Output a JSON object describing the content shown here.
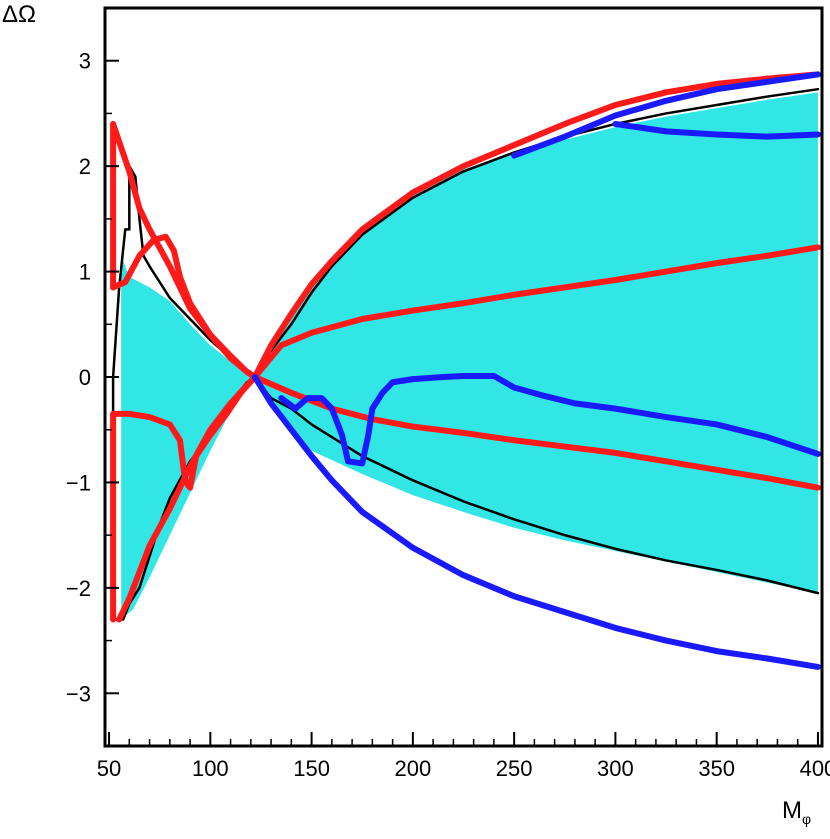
{
  "chart_data": {
    "type": "line",
    "title": "",
    "xlabel": "M",
    "xlabel_sub": "φ",
    "ylabel": "ΔΩ",
    "xlim": [
      48,
      402
    ],
    "ylim": [
      -3.5,
      3.5
    ],
    "x_ticks": [
      50,
      100,
      150,
      200,
      250,
      300,
      350,
      400
    ],
    "y_ticks": [
      -3,
      -2,
      -1,
      0,
      1,
      2,
      3
    ],
    "x_tick_labels": [
      "50",
      "100",
      "150",
      "200",
      "250",
      "300",
      "350",
      "400"
    ],
    "y_tick_labels": [
      "−3",
      "−2",
      "−1",
      "0",
      "1",
      "2",
      "3"
    ],
    "grid": false,
    "legend": "none",
    "band": {
      "color": "#33e6e6",
      "upper": [
        [
          56,
          1.15
        ],
        [
          60,
          0.95
        ],
        [
          70,
          0.85
        ],
        [
          80,
          0.72
        ],
        [
          90,
          0.5
        ],
        [
          100,
          0.3
        ],
        [
          110,
          0.15
        ],
        [
          118,
          0.07
        ],
        [
          122,
          0
        ],
        [
          130,
          0.25
        ],
        [
          140,
          0.55
        ],
        [
          150,
          0.85
        ],
        [
          160,
          1.1
        ],
        [
          175,
          1.38
        ],
        [
          200,
          1.72
        ],
        [
          225,
          1.97
        ],
        [
          250,
          2.12
        ],
        [
          275,
          2.25
        ],
        [
          300,
          2.37
        ],
        [
          325,
          2.47
        ],
        [
          350,
          2.55
        ],
        [
          375,
          2.63
        ],
        [
          400,
          2.7
        ]
      ],
      "lower": [
        [
          400,
          -2.05
        ],
        [
          375,
          -1.95
        ],
        [
          350,
          -1.85
        ],
        [
          325,
          -1.75
        ],
        [
          300,
          -1.65
        ],
        [
          275,
          -1.55
        ],
        [
          250,
          -1.43
        ],
        [
          225,
          -1.28
        ],
        [
          200,
          -1.12
        ],
        [
          175,
          -0.92
        ],
        [
          150,
          -0.7
        ],
        [
          140,
          -0.5
        ],
        [
          130,
          -0.25
        ],
        [
          122,
          0
        ],
        [
          115,
          -0.15
        ],
        [
          108,
          -0.4
        ],
        [
          100,
          -0.7
        ],
        [
          90,
          -1.1
        ],
        [
          80,
          -1.5
        ],
        [
          70,
          -1.9
        ],
        [
          62,
          -2.2
        ],
        [
          56,
          -2.3
        ]
      ]
    },
    "series": [
      {
        "color": "#000000",
        "width": 2.5,
        "points": [
          [
            52,
            -2.3
          ],
          [
            57,
            -2.3
          ],
          [
            60,
            -2.15
          ],
          [
            65,
            -2.0
          ],
          [
            70,
            -1.7
          ],
          [
            75,
            -1.4
          ],
          [
            80,
            -1.15
          ],
          [
            90,
            -0.8
          ],
          [
            100,
            -0.55
          ],
          [
            110,
            -0.25
          ],
          [
            118,
            -0.05
          ],
          [
            122,
            0
          ],
          [
            130,
            -0.2
          ],
          [
            140,
            -0.3
          ],
          [
            150,
            -0.45
          ],
          [
            175,
            -0.75
          ],
          [
            200,
            -0.98
          ],
          [
            225,
            -1.18
          ],
          [
            250,
            -1.35
          ],
          [
            275,
            -1.5
          ],
          [
            300,
            -1.63
          ],
          [
            325,
            -1.74
          ],
          [
            350,
            -1.83
          ],
          [
            375,
            -1.93
          ],
          [
            400,
            -2.05
          ]
        ]
      },
      {
        "color": "#000000",
        "width": 2.5,
        "points": [
          [
            52,
            -2.3
          ],
          [
            52,
            0
          ],
          [
            55,
            0.85
          ],
          [
            58,
            1.4
          ],
          [
            60,
            1.4
          ],
          [
            60,
            2.0
          ],
          [
            63,
            1.9
          ],
          [
            65,
            1.5
          ],
          [
            67,
            1.15
          ],
          [
            70,
            1.05
          ],
          [
            75,
            0.9
          ],
          [
            80,
            0.75
          ],
          [
            90,
            0.55
          ],
          [
            100,
            0.35
          ],
          [
            110,
            0.18
          ],
          [
            118,
            0.06
          ],
          [
            122,
            0
          ],
          [
            125,
            0.15
          ],
          [
            130,
            0.25
          ],
          [
            140,
            0.5
          ],
          [
            150,
            0.8
          ],
          [
            160,
            1.05
          ],
          [
            175,
            1.35
          ],
          [
            200,
            1.7
          ],
          [
            225,
            1.95
          ],
          [
            250,
            2.13
          ],
          [
            275,
            2.28
          ],
          [
            300,
            2.4
          ],
          [
            325,
            2.5
          ],
          [
            350,
            2.58
          ],
          [
            375,
            2.66
          ],
          [
            400,
            2.73
          ]
        ]
      },
      {
        "color": "#ff1a1a",
        "width": 6,
        "points": [
          [
            52,
            2.4
          ],
          [
            60,
            1.95
          ],
          [
            65,
            1.6
          ],
          [
            70,
            1.4
          ],
          [
            80,
            1.05
          ],
          [
            90,
            0.65
          ],
          [
            100,
            0.4
          ],
          [
            110,
            0.18
          ],
          [
            118,
            0.05
          ],
          [
            122,
            0
          ]
        ]
      },
      {
        "color": "#ff1a1a",
        "width": 6,
        "points": [
          [
            52,
            0.85
          ],
          [
            58,
            0.9
          ],
          [
            65,
            1.15
          ],
          [
            72,
            1.3
          ],
          [
            78,
            1.33
          ],
          [
            82,
            1.2
          ],
          [
            85,
            0.95
          ],
          [
            90,
            0.7
          ],
          [
            100,
            0.4
          ],
          [
            110,
            0.2
          ],
          [
            118,
            0.05
          ],
          [
            122,
            0
          ]
        ]
      },
      {
        "color": "#ff1a1a",
        "width": 6,
        "points": [
          [
            52,
            2.4
          ],
          [
            52,
            0.85
          ]
        ]
      },
      {
        "color": "#ff1a1a",
        "width": 6,
        "points": [
          [
            52,
            -2.3
          ],
          [
            52,
            -0.35
          ],
          [
            60,
            -0.35
          ],
          [
            70,
            -0.38
          ],
          [
            80,
            -0.45
          ],
          [
            85,
            -0.6
          ],
          [
            87,
            -0.9
          ],
          [
            88,
            -1.0
          ],
          [
            90,
            -1.05
          ],
          [
            93,
            -0.75
          ],
          [
            100,
            -0.55
          ],
          [
            108,
            -0.35
          ],
          [
            115,
            -0.15
          ],
          [
            122,
            0
          ]
        ]
      },
      {
        "color": "#ff1a1a",
        "width": 6,
        "points": [
          [
            55,
            -2.3
          ],
          [
            60,
            -2.1
          ],
          [
            65,
            -1.85
          ],
          [
            70,
            -1.6
          ],
          [
            80,
            -1.25
          ],
          [
            90,
            -0.85
          ],
          [
            100,
            -0.5
          ],
          [
            110,
            -0.25
          ],
          [
            118,
            -0.08
          ],
          [
            122,
            0
          ]
        ]
      },
      {
        "color": "#ff1a1a",
        "width": 6,
        "points": [
          [
            122,
            0
          ],
          [
            130,
            0.3
          ],
          [
            140,
            0.6
          ],
          [
            150,
            0.88
          ],
          [
            160,
            1.1
          ],
          [
            175,
            1.4
          ],
          [
            200,
            1.75
          ],
          [
            225,
            2.0
          ],
          [
            250,
            2.2
          ],
          [
            275,
            2.4
          ],
          [
            300,
            2.58
          ],
          [
            325,
            2.7
          ],
          [
            350,
            2.78
          ],
          [
            375,
            2.83
          ],
          [
            400,
            2.87
          ]
        ]
      },
      {
        "color": "#ff1a1a",
        "width": 6,
        "points": [
          [
            122,
            0
          ],
          [
            135,
            0.3
          ],
          [
            150,
            0.42
          ],
          [
            175,
            0.55
          ],
          [
            200,
            0.63
          ],
          [
            225,
            0.7
          ],
          [
            250,
            0.78
          ],
          [
            275,
            0.85
          ],
          [
            300,
            0.92
          ],
          [
            325,
            1.0
          ],
          [
            350,
            1.08
          ],
          [
            375,
            1.15
          ],
          [
            400,
            1.23
          ]
        ]
      },
      {
        "color": "#ff1a1a",
        "width": 6,
        "points": [
          [
            122,
            0
          ],
          [
            140,
            -0.15
          ],
          [
            160,
            -0.3
          ],
          [
            180,
            -0.4
          ],
          [
            200,
            -0.47
          ],
          [
            225,
            -0.53
          ],
          [
            250,
            -0.6
          ],
          [
            275,
            -0.66
          ],
          [
            300,
            -0.72
          ],
          [
            325,
            -0.8
          ],
          [
            350,
            -0.88
          ],
          [
            375,
            -0.96
          ],
          [
            400,
            -1.05
          ]
        ]
      },
      {
        "color": "#1a1aff",
        "width": 6,
        "points": [
          [
            122,
            0
          ],
          [
            130,
            -0.25
          ],
          [
            140,
            -0.5
          ],
          [
            150,
            -0.75
          ],
          [
            160,
            -0.98
          ],
          [
            175,
            -1.28
          ],
          [
            200,
            -1.62
          ],
          [
            225,
            -1.88
          ],
          [
            250,
            -2.08
          ],
          [
            275,
            -2.23
          ],
          [
            300,
            -2.38
          ],
          [
            325,
            -2.5
          ],
          [
            350,
            -2.6
          ],
          [
            375,
            -2.67
          ],
          [
            400,
            -2.75
          ]
        ]
      },
      {
        "color": "#1a1aff",
        "width": 6,
        "points": [
          [
            135,
            -0.2
          ],
          [
            142,
            -0.3
          ],
          [
            148,
            -0.2
          ],
          [
            155,
            -0.2
          ],
          [
            160,
            -0.3
          ],
          [
            165,
            -0.55
          ],
          [
            168,
            -0.8
          ],
          [
            175,
            -0.82
          ],
          [
            178,
            -0.55
          ],
          [
            180,
            -0.3
          ],
          [
            185,
            -0.15
          ],
          [
            190,
            -0.05
          ],
          [
            200,
            -0.02
          ],
          [
            215,
            0.0
          ],
          [
            225,
            0.01
          ],
          [
            240,
            0.01
          ],
          [
            250,
            -0.1
          ],
          [
            265,
            -0.18
          ],
          [
            280,
            -0.25
          ],
          [
            300,
            -0.3
          ],
          [
            325,
            -0.38
          ],
          [
            350,
            -0.45
          ],
          [
            375,
            -0.57
          ],
          [
            400,
            -0.73
          ]
        ]
      },
      {
        "color": "#1a1aff",
        "width": 6,
        "points": [
          [
            250,
            2.1
          ],
          [
            275,
            2.28
          ],
          [
            300,
            2.48
          ],
          [
            325,
            2.62
          ],
          [
            350,
            2.73
          ],
          [
            375,
            2.8
          ],
          [
            400,
            2.87
          ]
        ]
      },
      {
        "color": "#1a1aff",
        "width": 6,
        "points": [
          [
            300,
            2.4
          ],
          [
            325,
            2.33
          ],
          [
            350,
            2.3
          ],
          [
            375,
            2.28
          ],
          [
            400,
            2.3
          ]
        ]
      }
    ]
  }
}
